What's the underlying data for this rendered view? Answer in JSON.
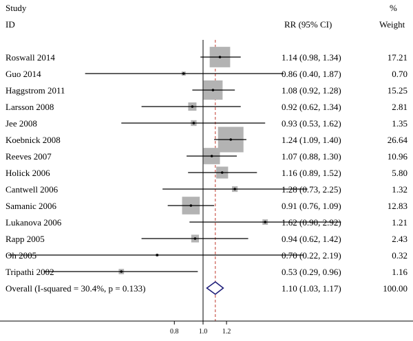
{
  "headers": {
    "study_line1": "Study",
    "study_line2": "ID",
    "estimate": "RR (95% CI)",
    "weight_line1": "%",
    "weight_line2": "Weight"
  },
  "colors": {
    "box": "#b3b3b3",
    "line": "#000000",
    "diamond": "#1f1f7a",
    "dashed": "#c0392b"
  },
  "chart_data": {
    "type": "forest",
    "scale": "log",
    "null_value": 1.0,
    "overall_line": 1.1,
    "xticks": [
      0.8,
      1.0,
      1.2
    ],
    "xtick_labels": [
      "0.8",
      "1.0",
      "1.2"
    ],
    "studies": [
      {
        "id": "Roswall 2014",
        "rr": 1.14,
        "lo": 0.98,
        "hi": 1.34,
        "ci_text": "1.14 (0.98, 1.34)",
        "weight": 17.21,
        "weight_text": "17.21"
      },
      {
        "id": "Guo 2014",
        "rr": 0.86,
        "lo": 0.4,
        "hi": 1.87,
        "ci_text": "0.86 (0.40, 1.87)",
        "weight": 0.7,
        "weight_text": "0.70"
      },
      {
        "id": "Haggstrom 2011",
        "rr": 1.08,
        "lo": 0.92,
        "hi": 1.28,
        "ci_text": "1.08 (0.92, 1.28)",
        "weight": 15.25,
        "weight_text": "15.25"
      },
      {
        "id": "Larsson 2008",
        "rr": 0.92,
        "lo": 0.62,
        "hi": 1.34,
        "ci_text": "0.92 (0.62, 1.34)",
        "weight": 2.81,
        "weight_text": "2.81"
      },
      {
        "id": "Jee 2008",
        "rr": 0.93,
        "lo": 0.53,
        "hi": 1.62,
        "ci_text": "0.93 (0.53, 1.62)",
        "weight": 1.35,
        "weight_text": "1.35"
      },
      {
        "id": "Koebnick 2008",
        "rr": 1.24,
        "lo": 1.09,
        "hi": 1.4,
        "ci_text": "1.24 (1.09, 1.40)",
        "weight": 26.64,
        "weight_text": "26.64"
      },
      {
        "id": "Reeves 2007",
        "rr": 1.07,
        "lo": 0.88,
        "hi": 1.3,
        "ci_text": "1.07 (0.88, 1.30)",
        "weight": 10.96,
        "weight_text": "10.96"
      },
      {
        "id": "Holick 2006",
        "rr": 1.16,
        "lo": 0.89,
        "hi": 1.52,
        "ci_text": "1.16 (0.89, 1.52)",
        "weight": 5.8,
        "weight_text": "5.80"
      },
      {
        "id": "Cantwell 2006",
        "rr": 1.28,
        "lo": 0.73,
        "hi": 2.25,
        "ci_text": "1.28 (0.73, 2.25)",
        "weight": 1.32,
        "weight_text": "1.32"
      },
      {
        "id": "Samanic 2006",
        "rr": 0.91,
        "lo": 0.76,
        "hi": 1.09,
        "ci_text": "0.91 (0.76, 1.09)",
        "weight": 12.83,
        "weight_text": "12.83"
      },
      {
        "id": "Lukanova 2006",
        "rr": 1.62,
        "lo": 0.9,
        "hi": 2.92,
        "ci_text": "1.62 (0.90, 2.92)",
        "weight": 1.21,
        "weight_text": "1.21"
      },
      {
        "id": "Rapp 2005",
        "rr": 0.94,
        "lo": 0.62,
        "hi": 1.42,
        "ci_text": "0.94 (0.62, 1.42)",
        "weight": 2.43,
        "weight_text": "2.43"
      },
      {
        "id": "Oh 2005",
        "rr": 0.7,
        "lo": 0.22,
        "hi": 2.19,
        "ci_text": "0.70 (0.22, 2.19)",
        "weight": 0.32,
        "weight_text": "0.32"
      },
      {
        "id": "Tripathi 2002",
        "rr": 0.53,
        "lo": 0.29,
        "hi": 0.96,
        "ci_text": "0.53 (0.29, 0.96)",
        "weight": 1.16,
        "weight_text": "1.16"
      }
    ],
    "overall": {
      "id": "Overall  (I-squared = 30.4%, p = 0.133)",
      "rr": 1.1,
      "lo": 1.03,
      "hi": 1.17,
      "ci_text": "1.10 (1.03, 1.17)",
      "weight_text": "100.00"
    }
  }
}
